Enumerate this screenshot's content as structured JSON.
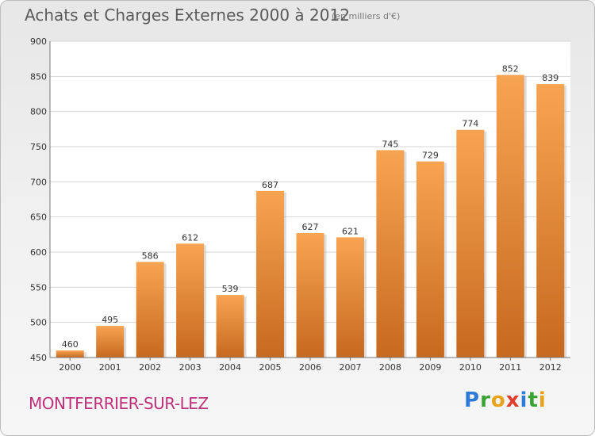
{
  "title": "Achats et Charges Externes 2000 à 2012",
  "subtitle": "(en milliers d'€)",
  "place": "MONTFERRIER-SUR-LEZ",
  "logo": {
    "letters": [
      "P",
      "r",
      "o",
      "x",
      "i",
      "t",
      "i"
    ],
    "colors": [
      "#2f7ad6",
      "#3aa335",
      "#e8a21b",
      "#e23c2b",
      "#2f7ad6",
      "#3aa335",
      "#e8a21b"
    ]
  },
  "colors": {
    "bar_top": "#f7a452",
    "bar_bottom": "#c7691f",
    "grid": "#d4d4d4",
    "axis": "#777777",
    "plot_bg": "#ffffff"
  },
  "chart_data": {
    "type": "bar",
    "title": "Achats et Charges Externes 2000 à 2012",
    "subtitle": "(en milliers d'€)",
    "xlabel": "",
    "ylabel": "",
    "categories": [
      "2000",
      "2001",
      "2002",
      "2003",
      "2004",
      "2005",
      "2006",
      "2007",
      "2008",
      "2009",
      "2010",
      "2011",
      "2012"
    ],
    "values": [
      460,
      495,
      586,
      612,
      539,
      687,
      627,
      621,
      745,
      729,
      774,
      852,
      839
    ],
    "ylim": [
      450,
      900
    ],
    "yticks": [
      450,
      500,
      550,
      600,
      650,
      700,
      750,
      800,
      850,
      900
    ],
    "grid": true,
    "legend": "none"
  }
}
